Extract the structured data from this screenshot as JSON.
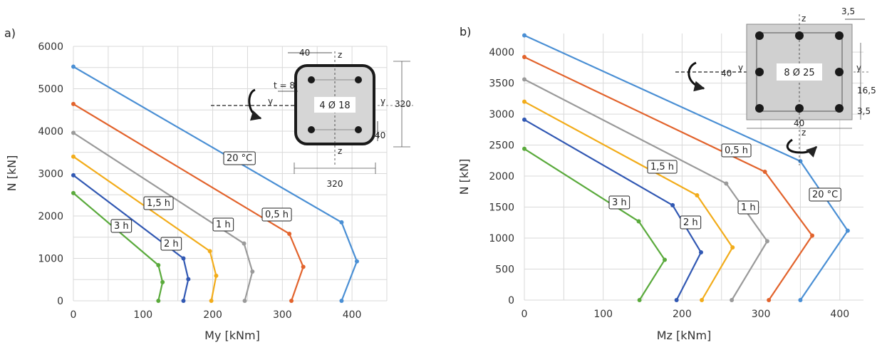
{
  "chart_data": [
    {
      "type": "line",
      "panel_label": "a)",
      "xlabel": "My [kNm]",
      "ylabel": "N [kN]",
      "xlim": [
        0,
        450
      ],
      "ylim": [
        0,
        6000
      ],
      "xticks": [
        "0",
        "100",
        "200",
        "300",
        "400"
      ],
      "yticks": [
        "0",
        "1000",
        "2000",
        "3000",
        "4000",
        "5000",
        "6000"
      ],
      "grid": true,
      "series": [
        {
          "name": "20 °C",
          "color": "#4a8fd4",
          "points": [
            [
              0,
              5520
            ],
            [
              385,
              1850
            ],
            [
              407,
              930
            ],
            [
              385,
              0
            ]
          ]
        },
        {
          "name": "0,5 h",
          "color": "#e2632c",
          "points": [
            [
              0,
              4640
            ],
            [
              310,
              1580
            ],
            [
              330,
              800
            ],
            [
              313,
              0
            ]
          ]
        },
        {
          "name": "1 h",
          "color": "#9a9a9a",
          "points": [
            [
              0,
              3960
            ],
            [
              245,
              1350
            ],
            [
              257,
              690
            ],
            [
              246,
              0
            ]
          ]
        },
        {
          "name": "1,5 h",
          "color": "#f2ac1a",
          "points": [
            [
              0,
              3400
            ],
            [
              196,
              1170
            ],
            [
              205,
              590
            ],
            [
              198,
              0
            ]
          ]
        },
        {
          "name": "2 h",
          "color": "#3158b3",
          "points": [
            [
              0,
              2960
            ],
            [
              158,
              1000
            ],
            [
              165,
              510
            ],
            [
              158,
              0
            ]
          ]
        },
        {
          "name": "3 h",
          "color": "#5aaa3c",
          "points": [
            [
              0,
              2540
            ],
            [
              122,
              840
            ],
            [
              128,
              440
            ],
            [
              122,
              0
            ]
          ]
        }
      ],
      "inset": {
        "section_label": "4 Ø 18",
        "dims": [
          "40",
          "t = 8",
          "320",
          "40",
          "320"
        ],
        "axis_labels": [
          "z",
          "z",
          "y",
          "y"
        ]
      }
    },
    {
      "type": "line",
      "panel_label": "b)",
      "xlabel": "Mz [kNm]",
      "ylabel": "N [kN]",
      "xlim": [
        0,
        430
      ],
      "ylim": [
        0,
        4300
      ],
      "xticks": [
        "0",
        "100",
        "200",
        "300",
        "400"
      ],
      "yticks": [
        "0",
        "500",
        "1000",
        "1500",
        "2000",
        "2500",
        "3000",
        "3500",
        "4000"
      ],
      "grid": true,
      "series": [
        {
          "name": "20 °C",
          "color": "#4a8fd4",
          "points": [
            [
              0,
              4270
            ],
            [
              350,
              2240
            ],
            [
              410,
              1120
            ],
            [
              350,
              0
            ]
          ]
        },
        {
          "name": "0,5 h",
          "color": "#e2632c",
          "points": [
            [
              0,
              3920
            ],
            [
              305,
              2070
            ],
            [
              365,
              1040
            ],
            [
              310,
              0
            ]
          ]
        },
        {
          "name": "1 h",
          "color": "#9a9a9a",
          "points": [
            [
              0,
              3560
            ],
            [
              256,
              1880
            ],
            [
              308,
              950
            ],
            [
              263,
              0
            ]
          ]
        },
        {
          "name": "1,5 h",
          "color": "#f2ac1a",
          "points": [
            [
              0,
              3200
            ],
            [
              219,
              1690
            ],
            [
              264,
              850
            ],
            [
              225,
              0
            ]
          ]
        },
        {
          "name": "2 h",
          "color": "#3158b3",
          "points": [
            [
              0,
              2910
            ],
            [
              188,
              1530
            ],
            [
              224,
              770
            ],
            [
              193,
              0
            ]
          ]
        },
        {
          "name": "3 h",
          "color": "#5aaa3c",
          "points": [
            [
              0,
              2440
            ],
            [
              145,
              1270
            ],
            [
              178,
              650
            ],
            [
              146,
              0
            ]
          ]
        }
      ],
      "inset": {
        "section_label": "8 Ø 25",
        "dims": [
          "3,5",
          "40",
          "16,5",
          "3,5",
          "40"
        ],
        "axis_labels": [
          "z",
          "z",
          "y",
          "y"
        ]
      }
    }
  ]
}
